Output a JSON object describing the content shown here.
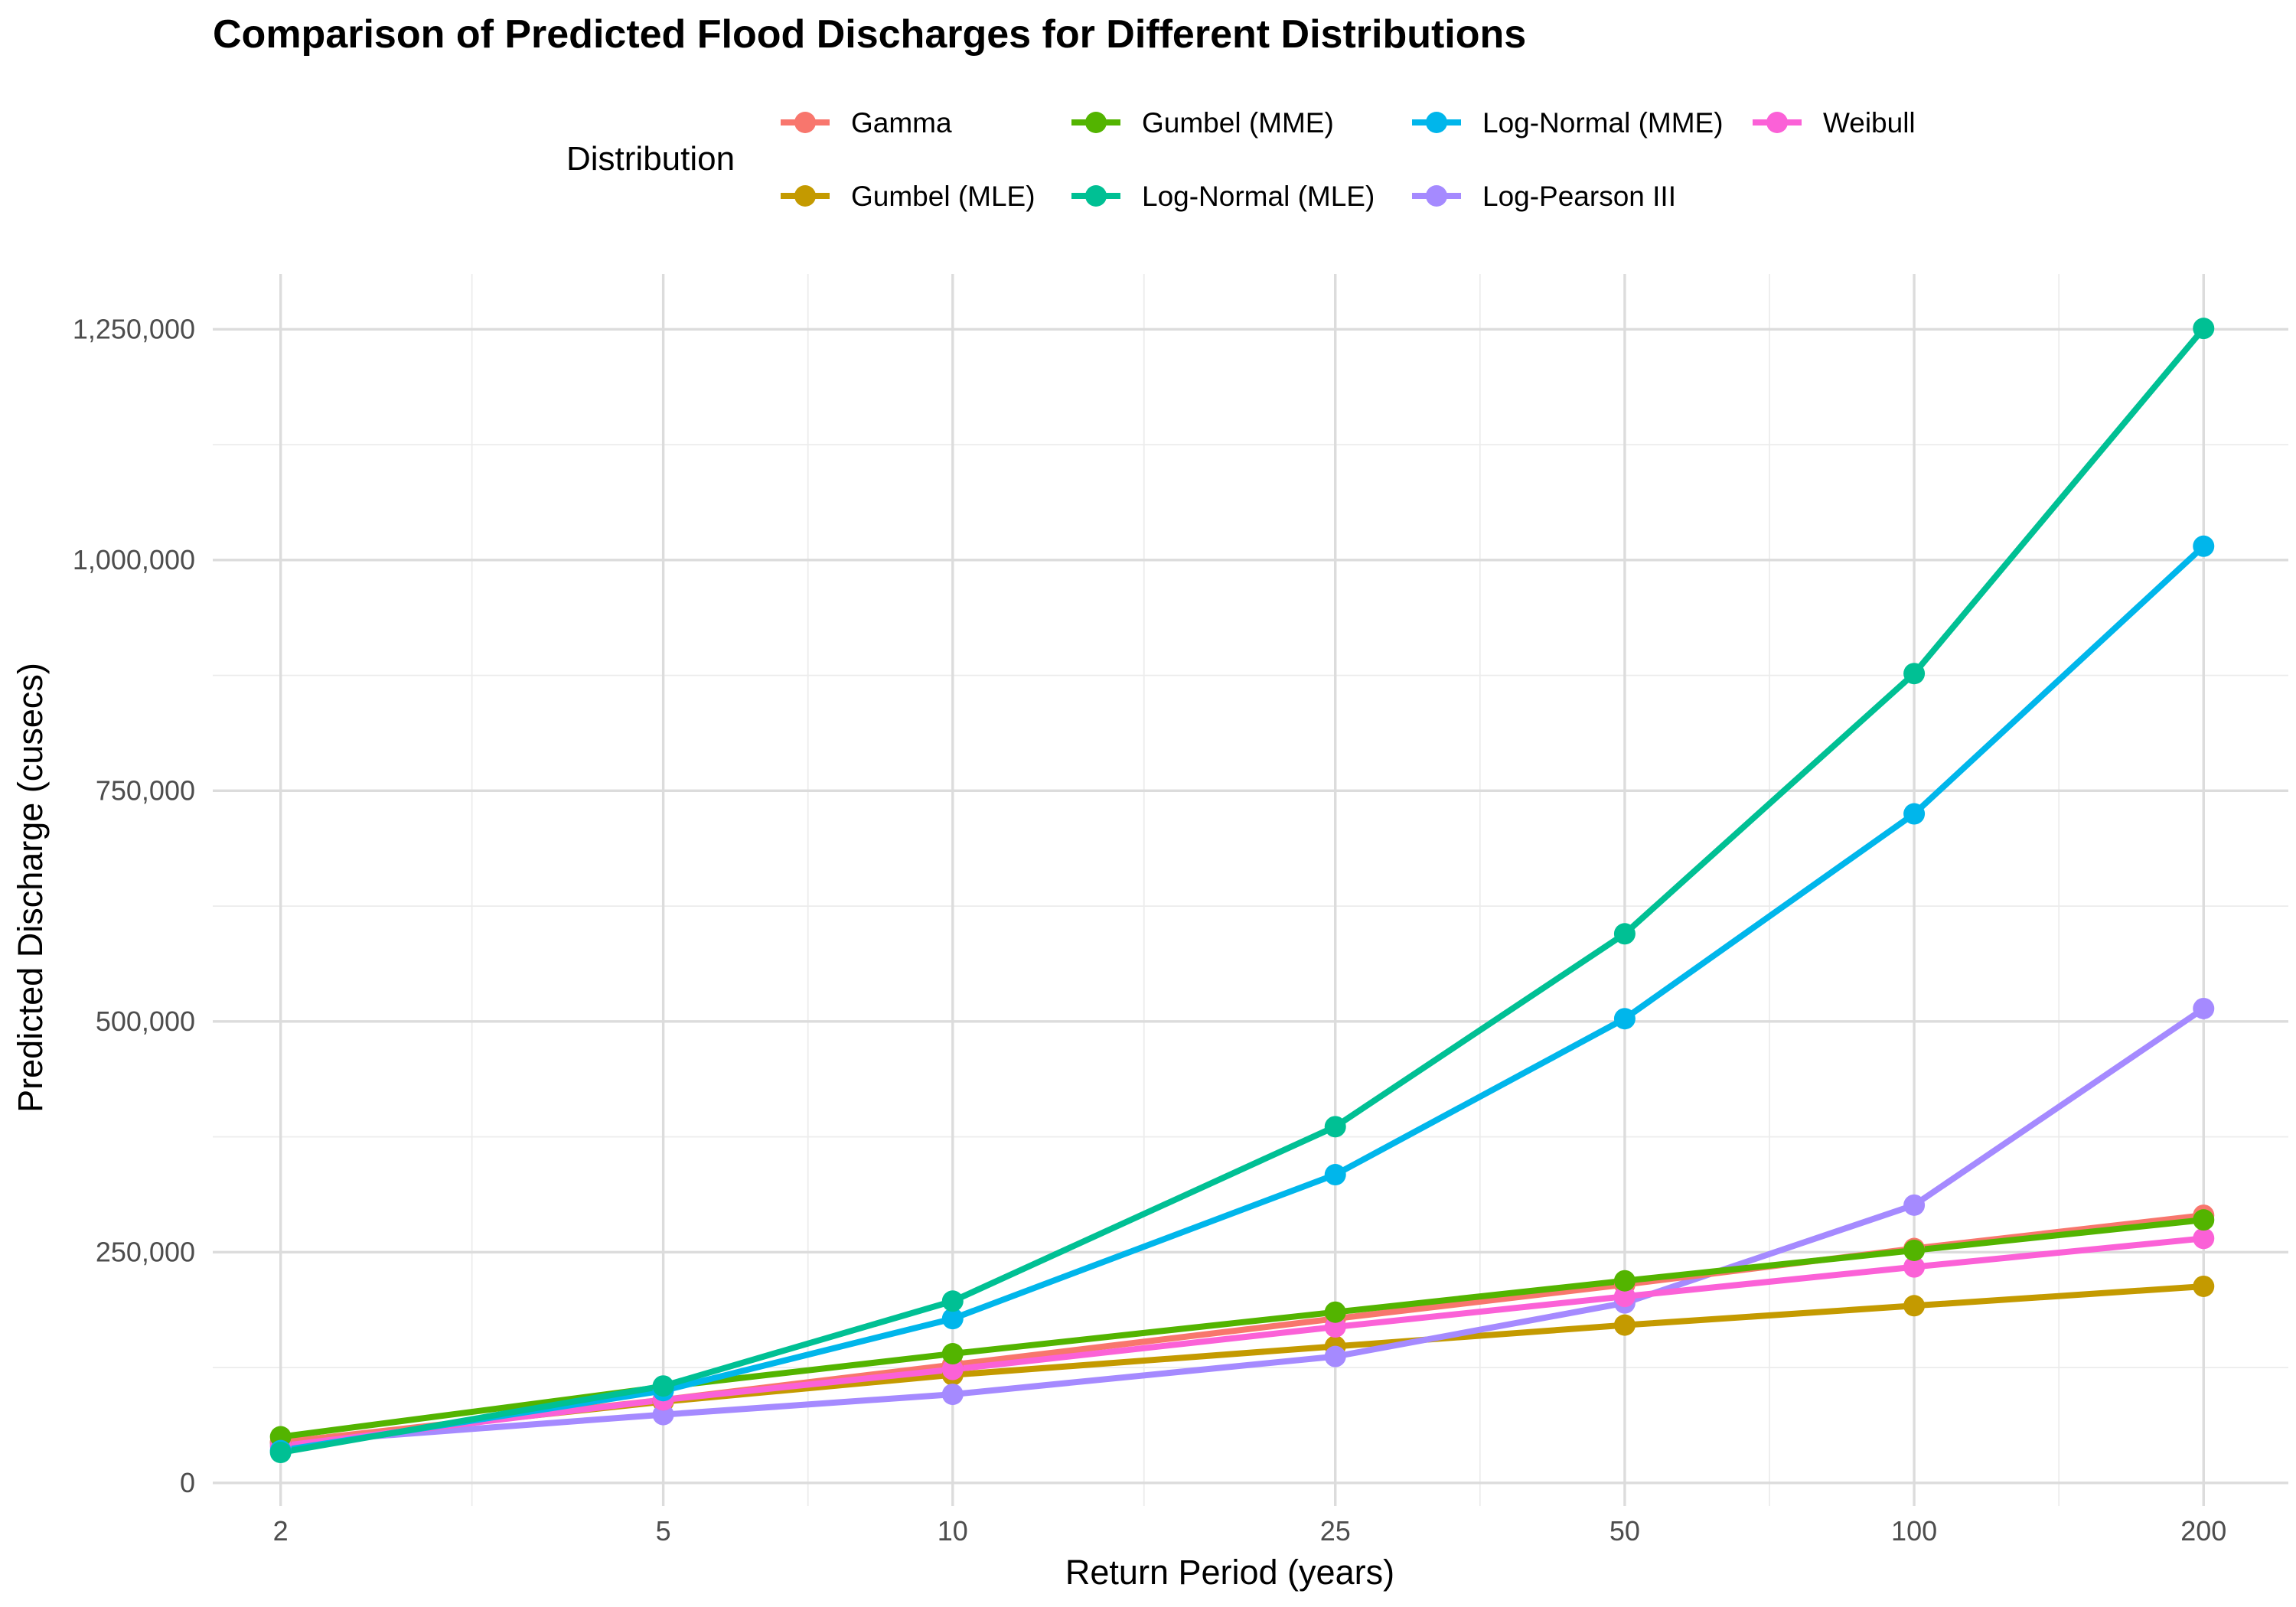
{
  "chart_data": {
    "type": "line",
    "title": "Comparison of Predicted Flood Discharges for Different Distributions",
    "xlabel": "Return Period (years)",
    "ylabel": "Predicted Discharge (cusecs)",
    "x_scale": "log",
    "x": [
      2,
      5,
      10,
      25,
      50,
      100,
      200
    ],
    "x_tick_labels": [
      "2",
      "5",
      "10",
      "25",
      "50",
      "100",
      "200"
    ],
    "xlim": [
      1.7,
      245
    ],
    "ylim": [
      -25000,
      1310000
    ],
    "y_ticks": [
      0,
      250000,
      500000,
      750000,
      1000000,
      1250000
    ],
    "y_tick_labels": [
      "0",
      "250,000",
      "500,000",
      "750,000",
      "1,000,000",
      "1,250,000"
    ],
    "grid": true,
    "legend": {
      "title": "Distribution",
      "position": "top",
      "columns": [
        [
          "Gamma",
          "Gumbel (MLE)"
        ],
        [
          "Gumbel (MME)",
          "Log-Normal (MLE)"
        ],
        [
          "Log-Normal (MME)",
          "Log-Pearson III"
        ],
        [
          "Weibull"
        ]
      ]
    },
    "series": [
      {
        "name": "Gumbel (MLE)",
        "color": "#C49A00",
        "values": [
          44000,
          88000,
          117000,
          148000,
          171000,
          192000,
          213000
        ]
      },
      {
        "name": "Log-Pearson III",
        "color": "#A58AFF",
        "values": [
          43000,
          74000,
          96000,
          137000,
          195000,
          301000,
          514000
        ]
      },
      {
        "name": "Gamma",
        "color": "#F8766D",
        "values": [
          44000,
          90000,
          128000,
          178000,
          215000,
          254000,
          290000
        ]
      },
      {
        "name": "Weibull",
        "color": "#FB61D7",
        "values": [
          40000,
          90000,
          123000,
          169000,
          202000,
          234000,
          265000
        ]
      },
      {
        "name": "Gumbel (MME)",
        "color": "#53B400",
        "values": [
          50000,
          104000,
          140000,
          185000,
          219000,
          252000,
          285000
        ]
      },
      {
        "name": "Log-Normal (MME)",
        "color": "#00B6EB",
        "values": [
          35000,
          100000,
          178000,
          334000,
          503000,
          725000,
          1015000
        ]
      },
      {
        "name": "Log-Normal (MLE)",
        "color": "#00C094",
        "values": [
          33000,
          105000,
          197000,
          386000,
          595000,
          877000,
          1251000
        ]
      }
    ]
  }
}
